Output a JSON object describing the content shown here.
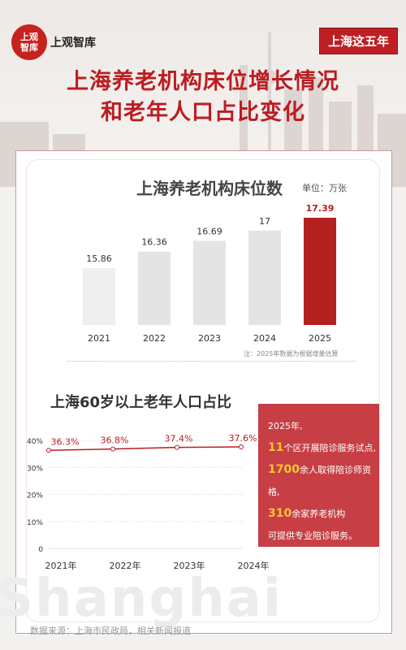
{
  "brand": {
    "badge_line1": "上观",
    "badge_line2": "智库",
    "name": "上观智库"
  },
  "series_tag": "上海这五年",
  "title_line1": "上海养老机构床位增长情况",
  "title_line2": "和老年人口占比变化",
  "footer_source": "数据来源：上海市民政局，相关新闻报道",
  "watermark": "Shanghai",
  "colors": {
    "accent": "#bb1d22",
    "bar_gray": "#e4e4e4",
    "bar_highlight": "#b4201f",
    "panel": "#c73f44",
    "highlight_num": "#f7c531"
  },
  "highlights": {
    "intro": "2025年,",
    "items": [
      {
        "num": "11",
        "text": "个区开展陪诊服务试点,"
      },
      {
        "num": "1700",
        "text": "余人取得陪诊师资格,"
      },
      {
        "num": "310",
        "text": "余家养老机构"
      }
    ],
    "outro": "可提供专业陪诊服务。"
  },
  "chart_data": [
    {
      "type": "bar",
      "title": "上海养老机构床位数",
      "unit": "单位：万张",
      "note": "注：2025年数据为根据增量估算",
      "categories": [
        "2021",
        "2022",
        "2023",
        "2024",
        "2025"
      ],
      "values": [
        15.86,
        16.36,
        16.69,
        17,
        17.39
      ],
      "value_labels": [
        "15.86",
        "16.36",
        "16.69",
        "17",
        "17.39"
      ],
      "highlight_index": 4
    },
    {
      "type": "line",
      "title": "上海60岁以上老年人口占比",
      "categories": [
        "2021年",
        "2022年",
        "2023年",
        "2024年"
      ],
      "values": [
        36.3,
        36.8,
        37.4,
        37.6
      ],
      "value_labels": [
        "36.3%",
        "36.8%",
        "37.4%",
        "37.6%"
      ],
      "y_ticks": [
        "0",
        "10%",
        "20%",
        "30%",
        "40%"
      ],
      "ylim": [
        0,
        40
      ],
      "grid": true
    }
  ]
}
